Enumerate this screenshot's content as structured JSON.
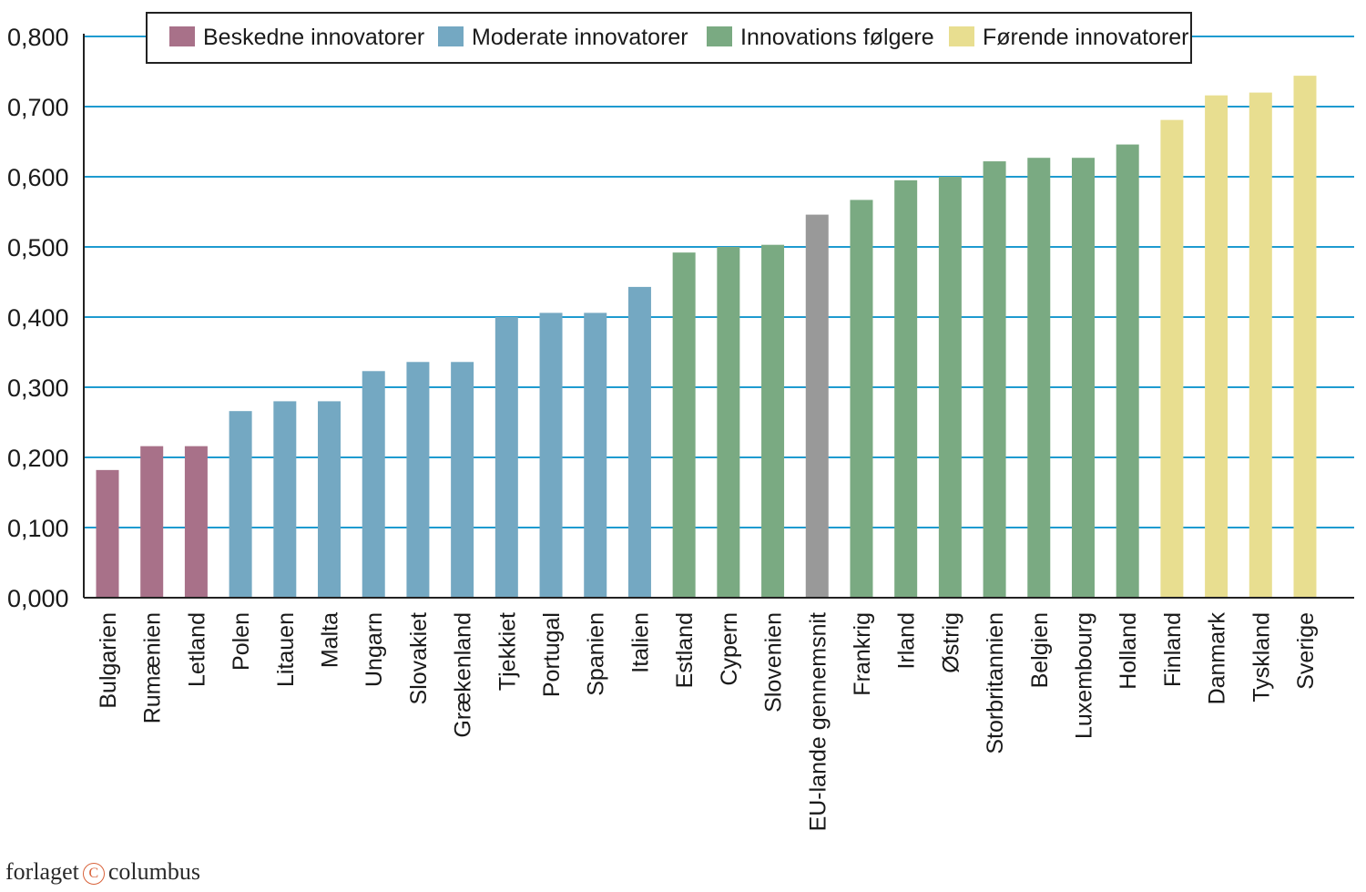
{
  "chart_data": {
    "type": "bar",
    "title": "",
    "xlabel": "",
    "ylabel": "",
    "ylim": [
      0,
      0.8
    ],
    "y_ticks": [
      "0,000",
      "0,100",
      "0,200",
      "0,300",
      "0,400",
      "0,500",
      "0,600",
      "0,700",
      "0,800"
    ],
    "grid": "horizontal",
    "legend_position": "top",
    "categories": [
      "Bulgarien",
      "Rumænien",
      "Letland",
      "Polen",
      "Litauen",
      "Malta",
      "Ungarn",
      "Slovakiet",
      "Grækenland",
      "Tjekkiet",
      "Portugal",
      "Spanien",
      "Italien",
      "Estland",
      "Cypern",
      "Slovenien",
      "EU-lande gennemsnit",
      "Frankrig",
      "Irland",
      "Østrig",
      "Storbritannien",
      "Belgien",
      "Luxembourg",
      "Holland",
      "Finland",
      "Danmark",
      "Tyskland",
      "Sverige"
    ],
    "values": [
      0.182,
      0.216,
      0.216,
      0.266,
      0.28,
      0.28,
      0.323,
      0.336,
      0.336,
      0.4,
      0.406,
      0.406,
      0.443,
      0.492,
      0.5,
      0.503,
      0.546,
      0.567,
      0.595,
      0.6,
      0.622,
      0.627,
      0.627,
      0.646,
      0.681,
      0.716,
      0.72,
      0.744
    ],
    "groups": [
      0,
      0,
      0,
      1,
      1,
      1,
      1,
      1,
      1,
      1,
      1,
      1,
      1,
      2,
      2,
      2,
      4,
      2,
      2,
      2,
      2,
      2,
      2,
      2,
      3,
      3,
      3,
      3
    ],
    "legend": [
      {
        "label": "Beskedne innovatorer",
        "color": "#a87189"
      },
      {
        "label": "Moderate innovatorer",
        "color": "#74a8c2"
      },
      {
        "label": "Innovations følgere",
        "color": "#7aaa82"
      },
      {
        "label": "Førende innovatorer",
        "color": "#e8de90"
      }
    ],
    "average_color": "#999999",
    "gridline_color": "#1e9bd0"
  },
  "publisher": {
    "left": "forlaget",
    "symbol": "C",
    "right": "columbus"
  }
}
